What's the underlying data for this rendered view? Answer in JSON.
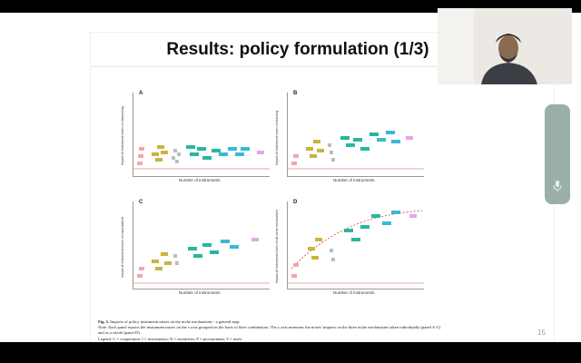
{
  "slide": {
    "title": "Results: policy formulation (1/3)",
    "page_number": "15"
  },
  "figure": {
    "panels": [
      {
        "letter": "A",
        "ylabel": "Impact of instrument mixes on networking",
        "xlabel": "Number of instruments"
      },
      {
        "letter": "B",
        "ylabel": "Impact of instrument mixes on learning",
        "xlabel": "Number of instruments"
      },
      {
        "letter": "C",
        "ylabel": "Impact of instrument mixes on expectations",
        "xlabel": "Number of instruments"
      },
      {
        "letter": "D",
        "ylabel": "Impact of instrument mixes on all niche mechanisms",
        "xlabel": "Number of instruments"
      }
    ],
    "colors": {
      "one": "#f2a7a7",
      "two": "#c9b43a",
      "three": "#bdbdbd",
      "four": "#27b7a0",
      "five": "#39b8d8",
      "six": "#e8a4e8",
      "reference_line": "#e58585",
      "trend": "#d94040"
    }
  },
  "caption": {
    "fig_label": "Fig. 5.",
    "fig_text": "Impacts of policy instrument mixes on the niche mechanisms - a general map.",
    "note": "Note: Each panel reports the instrument mixes on the x axis grouped on the basis of their combination. The y axis measures the mixes' impacts on the three niche mechanisms taken individually (panel A-C) and as a whole (panel D).",
    "legend": "Legend: C = cooperation; I = investments; N = incentives; P = procurement; T = taxes.",
    "source": "Source: Authors."
  },
  "webcam": {
    "icon": "participant-video"
  },
  "controls": {
    "icon": "microphone-icon"
  }
}
